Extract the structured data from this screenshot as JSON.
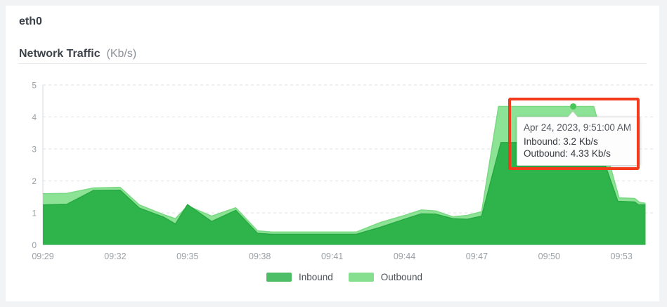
{
  "header": {
    "device": "eth0",
    "title": "Network Traffic",
    "unit": "(Kb/s)"
  },
  "chart_data": {
    "type": "area",
    "title": "Network Traffic (Kb/s)",
    "grid": "horizontal-dashed",
    "legend_position": "bottom-center",
    "x_axis": {
      "start_time": "09:29",
      "range_minutes": [
        0,
        25
      ],
      "tick_minutes": [
        0,
        3,
        6,
        9,
        12,
        15,
        18,
        21,
        24
      ],
      "tick_labels": [
        "09:29",
        "09:32",
        "09:35",
        "09:38",
        "09:41",
        "09:44",
        "09:47",
        "09:50",
        "09:53"
      ]
    },
    "y_axis": {
      "ticks": [
        0,
        1,
        2,
        3,
        4,
        5
      ],
      "range": [
        0,
        5
      ]
    },
    "series": [
      {
        "name": "Inbound",
        "fill": "#2eb44a",
        "stroke": "#28a843",
        "points": [
          [
            0,
            1.25
          ],
          [
            1,
            1.27
          ],
          [
            2.1,
            1.7
          ],
          [
            3.2,
            1.71
          ],
          [
            4,
            1.15
          ],
          [
            5,
            0.87
          ],
          [
            5.5,
            0.65
          ],
          [
            6,
            1.26
          ],
          [
            7,
            0.73
          ],
          [
            8,
            1.08
          ],
          [
            8.9,
            0.36
          ],
          [
            9.5,
            0.33
          ],
          [
            13,
            0.33
          ],
          [
            14,
            0.55
          ],
          [
            15,
            0.8
          ],
          [
            15.7,
            0.97
          ],
          [
            16.3,
            0.96
          ],
          [
            17,
            0.82
          ],
          [
            17.6,
            0.8
          ],
          [
            18.2,
            0.9
          ],
          [
            19,
            3.2
          ],
          [
            23,
            3.2
          ],
          [
            23.85,
            1.36
          ],
          [
            24.55,
            1.34
          ],
          [
            24.7,
            1.25
          ],
          [
            25,
            1.25
          ]
        ]
      },
      {
        "name": "Outbound",
        "fill": "#8ce295",
        "stroke": "#7ad983",
        "points": [
          [
            0,
            1.6
          ],
          [
            1,
            1.61
          ],
          [
            2.1,
            1.78
          ],
          [
            3.2,
            1.8
          ],
          [
            4,
            1.25
          ],
          [
            5,
            0.95
          ],
          [
            5.5,
            0.82
          ],
          [
            6,
            1.22
          ],
          [
            7,
            0.9
          ],
          [
            8,
            1.16
          ],
          [
            8.9,
            0.44
          ],
          [
            9.5,
            0.4
          ],
          [
            13,
            0.4
          ],
          [
            14,
            0.7
          ],
          [
            15,
            0.92
          ],
          [
            15.7,
            1.09
          ],
          [
            16.3,
            1.06
          ],
          [
            17,
            0.88
          ],
          [
            17.6,
            0.92
          ],
          [
            18.2,
            1.04
          ],
          [
            18.9,
            4.33
          ],
          [
            22.85,
            4.33
          ],
          [
            23.9,
            1.47
          ],
          [
            24.55,
            1.45
          ],
          [
            24.75,
            1.33
          ],
          [
            25,
            1.3
          ]
        ]
      }
    ],
    "draw_order": [
      1,
      0
    ],
    "marker": {
      "series": "Outbound",
      "minute": 22,
      "time": "09:51",
      "value": 4.33,
      "color": "#4bc55a"
    }
  },
  "legend": {
    "items": [
      {
        "label": "Inbound",
        "color": "#4dbe66"
      },
      {
        "label": "Outbound",
        "color": "#85df8e"
      }
    ]
  },
  "tooltip": {
    "date": "Apr 24, 2023, 9:51:00 AM",
    "lines": [
      "Inbound: 3.2 Kb/s",
      "Outbound: 4.33 Kb/s"
    ]
  },
  "annotation": {
    "type": "highlight-box",
    "color": "#f43a1c"
  },
  "colors": {
    "page_bg": "#f2f3f4",
    "card_bg": "#ffffff",
    "axis_text": "#9aa0a5",
    "grid": "#e0e2e4",
    "axis_line": "#d7dadc"
  }
}
